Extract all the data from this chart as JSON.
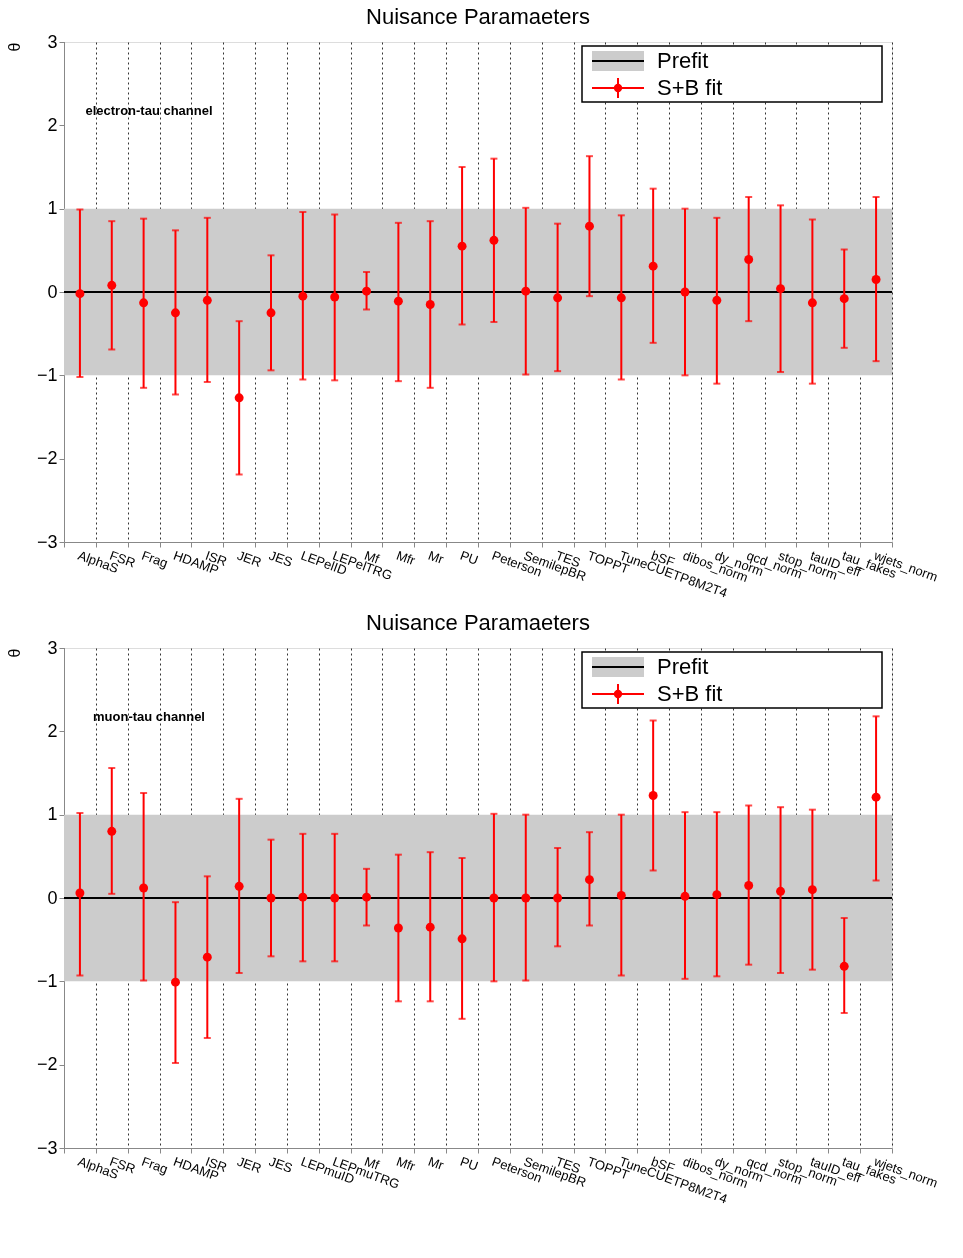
{
  "chart_data": [
    {
      "type": "scatter",
      "title": "Nuisance Paramaeters",
      "ylabel": "θ",
      "annotations": [
        "electron-tau channel"
      ],
      "categories": [
        "AlphaS",
        "FSR",
        "Frag",
        "HDAMP",
        "ISR",
        "JER",
        "JES",
        "LEPelID",
        "LEPelTRG",
        "Mf",
        "Mfr",
        "Mr",
        "PU",
        "Peterson",
        "SemilepBR",
        "TES",
        "TOPPT",
        "TuneCUETP8M2T4",
        "bSF",
        "dibos_norm",
        "dy_norm",
        "qcd_norm",
        "stop_norm",
        "tauID_eff",
        "tau_fakes",
        "wjets_norm"
      ],
      "series": [
        {
          "name": "S+B fit",
          "color": "#ff0000",
          "values": [
            -0.02,
            0.08,
            -0.13,
            -0.25,
            -0.1,
            -1.27,
            -0.25,
            -0.05,
            -0.06,
            0.01,
            -0.11,
            -0.15,
            0.55,
            0.62,
            0.01,
            -0.07,
            0.79,
            -0.07,
            0.31,
            0.0,
            -0.1,
            0.39,
            0.04,
            -0.13,
            -0.08,
            0.15
          ],
          "errors": [
            [
              -1.02,
              0.99
            ],
            [
              -0.69,
              0.85
            ],
            [
              -1.15,
              0.88
            ],
            [
              -1.23,
              0.74
            ],
            [
              -1.08,
              0.89
            ],
            [
              -2.19,
              -0.35
            ],
            [
              -0.94,
              0.44
            ],
            [
              -1.05,
              0.96
            ],
            [
              -1.06,
              0.93
            ],
            [
              -0.21,
              0.24
            ],
            [
              -1.07,
              0.83
            ],
            [
              -1.15,
              0.85
            ],
            [
              -0.39,
              1.5
            ],
            [
              -0.36,
              1.6
            ],
            [
              -0.99,
              1.01
            ],
            [
              -0.95,
              0.82
            ],
            [
              -0.05,
              1.63
            ],
            [
              -1.05,
              0.92
            ],
            [
              -0.61,
              1.24
            ],
            [
              -1.0,
              1.0
            ],
            [
              -1.1,
              0.89
            ],
            [
              -0.35,
              1.14
            ],
            [
              -0.96,
              1.04
            ],
            [
              -1.1,
              0.87
            ],
            [
              -0.67,
              0.51
            ],
            [
              -0.83,
              1.14
            ]
          ]
        }
      ],
      "bands": [
        {
          "axis": "y",
          "from": -1,
          "to": 1,
          "label": "Prefit",
          "color": "#cccccc"
        }
      ],
      "ref_lines": [
        {
          "axis": "y",
          "value": 0,
          "color": "#000000"
        }
      ],
      "ylim": [
        -3,
        3
      ],
      "yticks": [
        -3,
        -2,
        -1,
        0,
        1,
        2,
        3
      ],
      "grid": "x",
      "legend": "top right",
      "marker": "circle"
    },
    {
      "type": "scatter",
      "title": "Nuisance Paramaeters",
      "ylabel": "θ",
      "annotations": [
        "muon-tau channel"
      ],
      "categories": [
        "AlphaS",
        "FSR",
        "Frag",
        "HDAMP",
        "ISR",
        "JER",
        "JES",
        "LEPmuID",
        "LEPmuTRG",
        "Mf",
        "Mfr",
        "Mr",
        "PU",
        "Peterson",
        "SemilepBR",
        "TES",
        "TOPPT",
        "TuneCUETP8M2T4",
        "bSF",
        "dibos_norm",
        "dy_norm",
        "qcd_norm",
        "stop_norm",
        "tauID_eff",
        "tau_fakes",
        "wjets_norm"
      ],
      "series": [
        {
          "name": "S+B fit",
          "color": "#ff0000",
          "values": [
            0.06,
            0.8,
            0.12,
            -1.01,
            -0.71,
            0.14,
            0.0,
            0.01,
            0.0,
            0.01,
            -0.36,
            -0.35,
            -0.49,
            0.0,
            0.0,
            0.0,
            0.22,
            0.03,
            1.23,
            0.02,
            0.04,
            0.15,
            0.08,
            0.1,
            -0.82,
            1.21
          ],
          "errors": [
            [
              -0.93,
              1.02
            ],
            [
              0.05,
              1.56
            ],
            [
              -0.99,
              1.26
            ],
            [
              -1.98,
              -0.05
            ],
            [
              -1.68,
              0.26
            ],
            [
              -0.9,
              1.19
            ],
            [
              -0.7,
              0.7
            ],
            [
              -0.76,
              0.77
            ],
            [
              -0.76,
              0.77
            ],
            [
              -0.33,
              0.35
            ],
            [
              -1.24,
              0.52
            ],
            [
              -1.24,
              0.55
            ],
            [
              -1.45,
              0.48
            ],
            [
              -1.0,
              1.01
            ],
            [
              -0.99,
              1.0
            ],
            [
              -0.58,
              0.6
            ],
            [
              -0.33,
              0.79
            ],
            [
              -0.93,
              1.0
            ],
            [
              0.33,
              2.13
            ],
            [
              -0.97,
              1.03
            ],
            [
              -0.94,
              1.03
            ],
            [
              -0.8,
              1.11
            ],
            [
              -0.9,
              1.09
            ],
            [
              -0.86,
              1.06
            ],
            [
              -1.38,
              -0.24
            ],
            [
              0.21,
              2.18
            ]
          ]
        }
      ],
      "bands": [
        {
          "axis": "y",
          "from": -1,
          "to": 1,
          "label": "Prefit",
          "color": "#cccccc"
        }
      ],
      "ref_lines": [
        {
          "axis": "y",
          "value": 0,
          "color": "#000000"
        }
      ],
      "ylim": [
        -3,
        3
      ],
      "yticks": [
        -3,
        -2,
        -1,
        0,
        1,
        2,
        3
      ],
      "grid": "x",
      "legend": "top right",
      "marker": "circle"
    }
  ]
}
